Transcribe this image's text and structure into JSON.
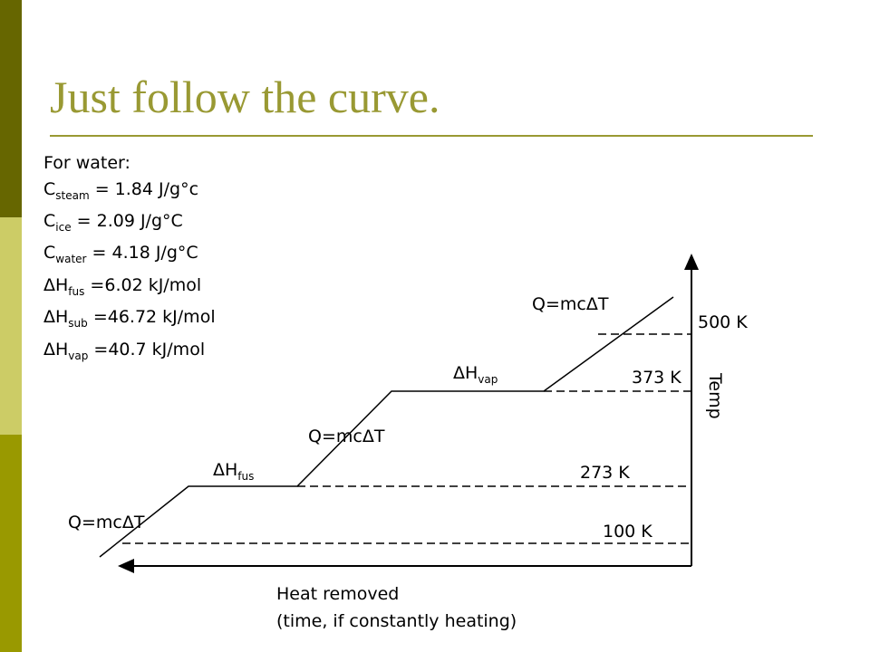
{
  "header": {
    "title": "Just follow the curve."
  },
  "constants": {
    "heading": "For water:",
    "lines": [
      {
        "main": "C",
        "sub": "steam",
        "rest": " = 1.84 J/g°c"
      },
      {
        "main": "C",
        "sub": "ice",
        "rest": " = 2.09 J/g°C"
      },
      {
        "main": "C",
        "sub": "water",
        "rest": " = 4.18 J/g°C"
      },
      {
        "main": "ΔH",
        "sub": "fus",
        "rest": " =6.02 kJ/mol"
      },
      {
        "main": "ΔH",
        "sub": "sub",
        "rest": " =46.72 kJ/mol"
      },
      {
        "main": "ΔH",
        "sub": "vap",
        "rest": " =40.7 kJ/mol"
      }
    ]
  },
  "diagram": {
    "segments": [
      {
        "main": "Q=mcΔT"
      },
      {
        "main": "ΔH",
        "sub": "fus"
      },
      {
        "main": "Q=mcΔT"
      },
      {
        "main": "ΔH",
        "sub": "vap"
      },
      {
        "main": "Q=mcΔT"
      }
    ],
    "temperatures": [
      "500 K",
      "373 K",
      "273 K",
      "100 K"
    ],
    "y_axis_label": "Temp",
    "x_axis_label": [
      "Heat removed",
      "(time, if constantly heating)"
    ]
  }
}
